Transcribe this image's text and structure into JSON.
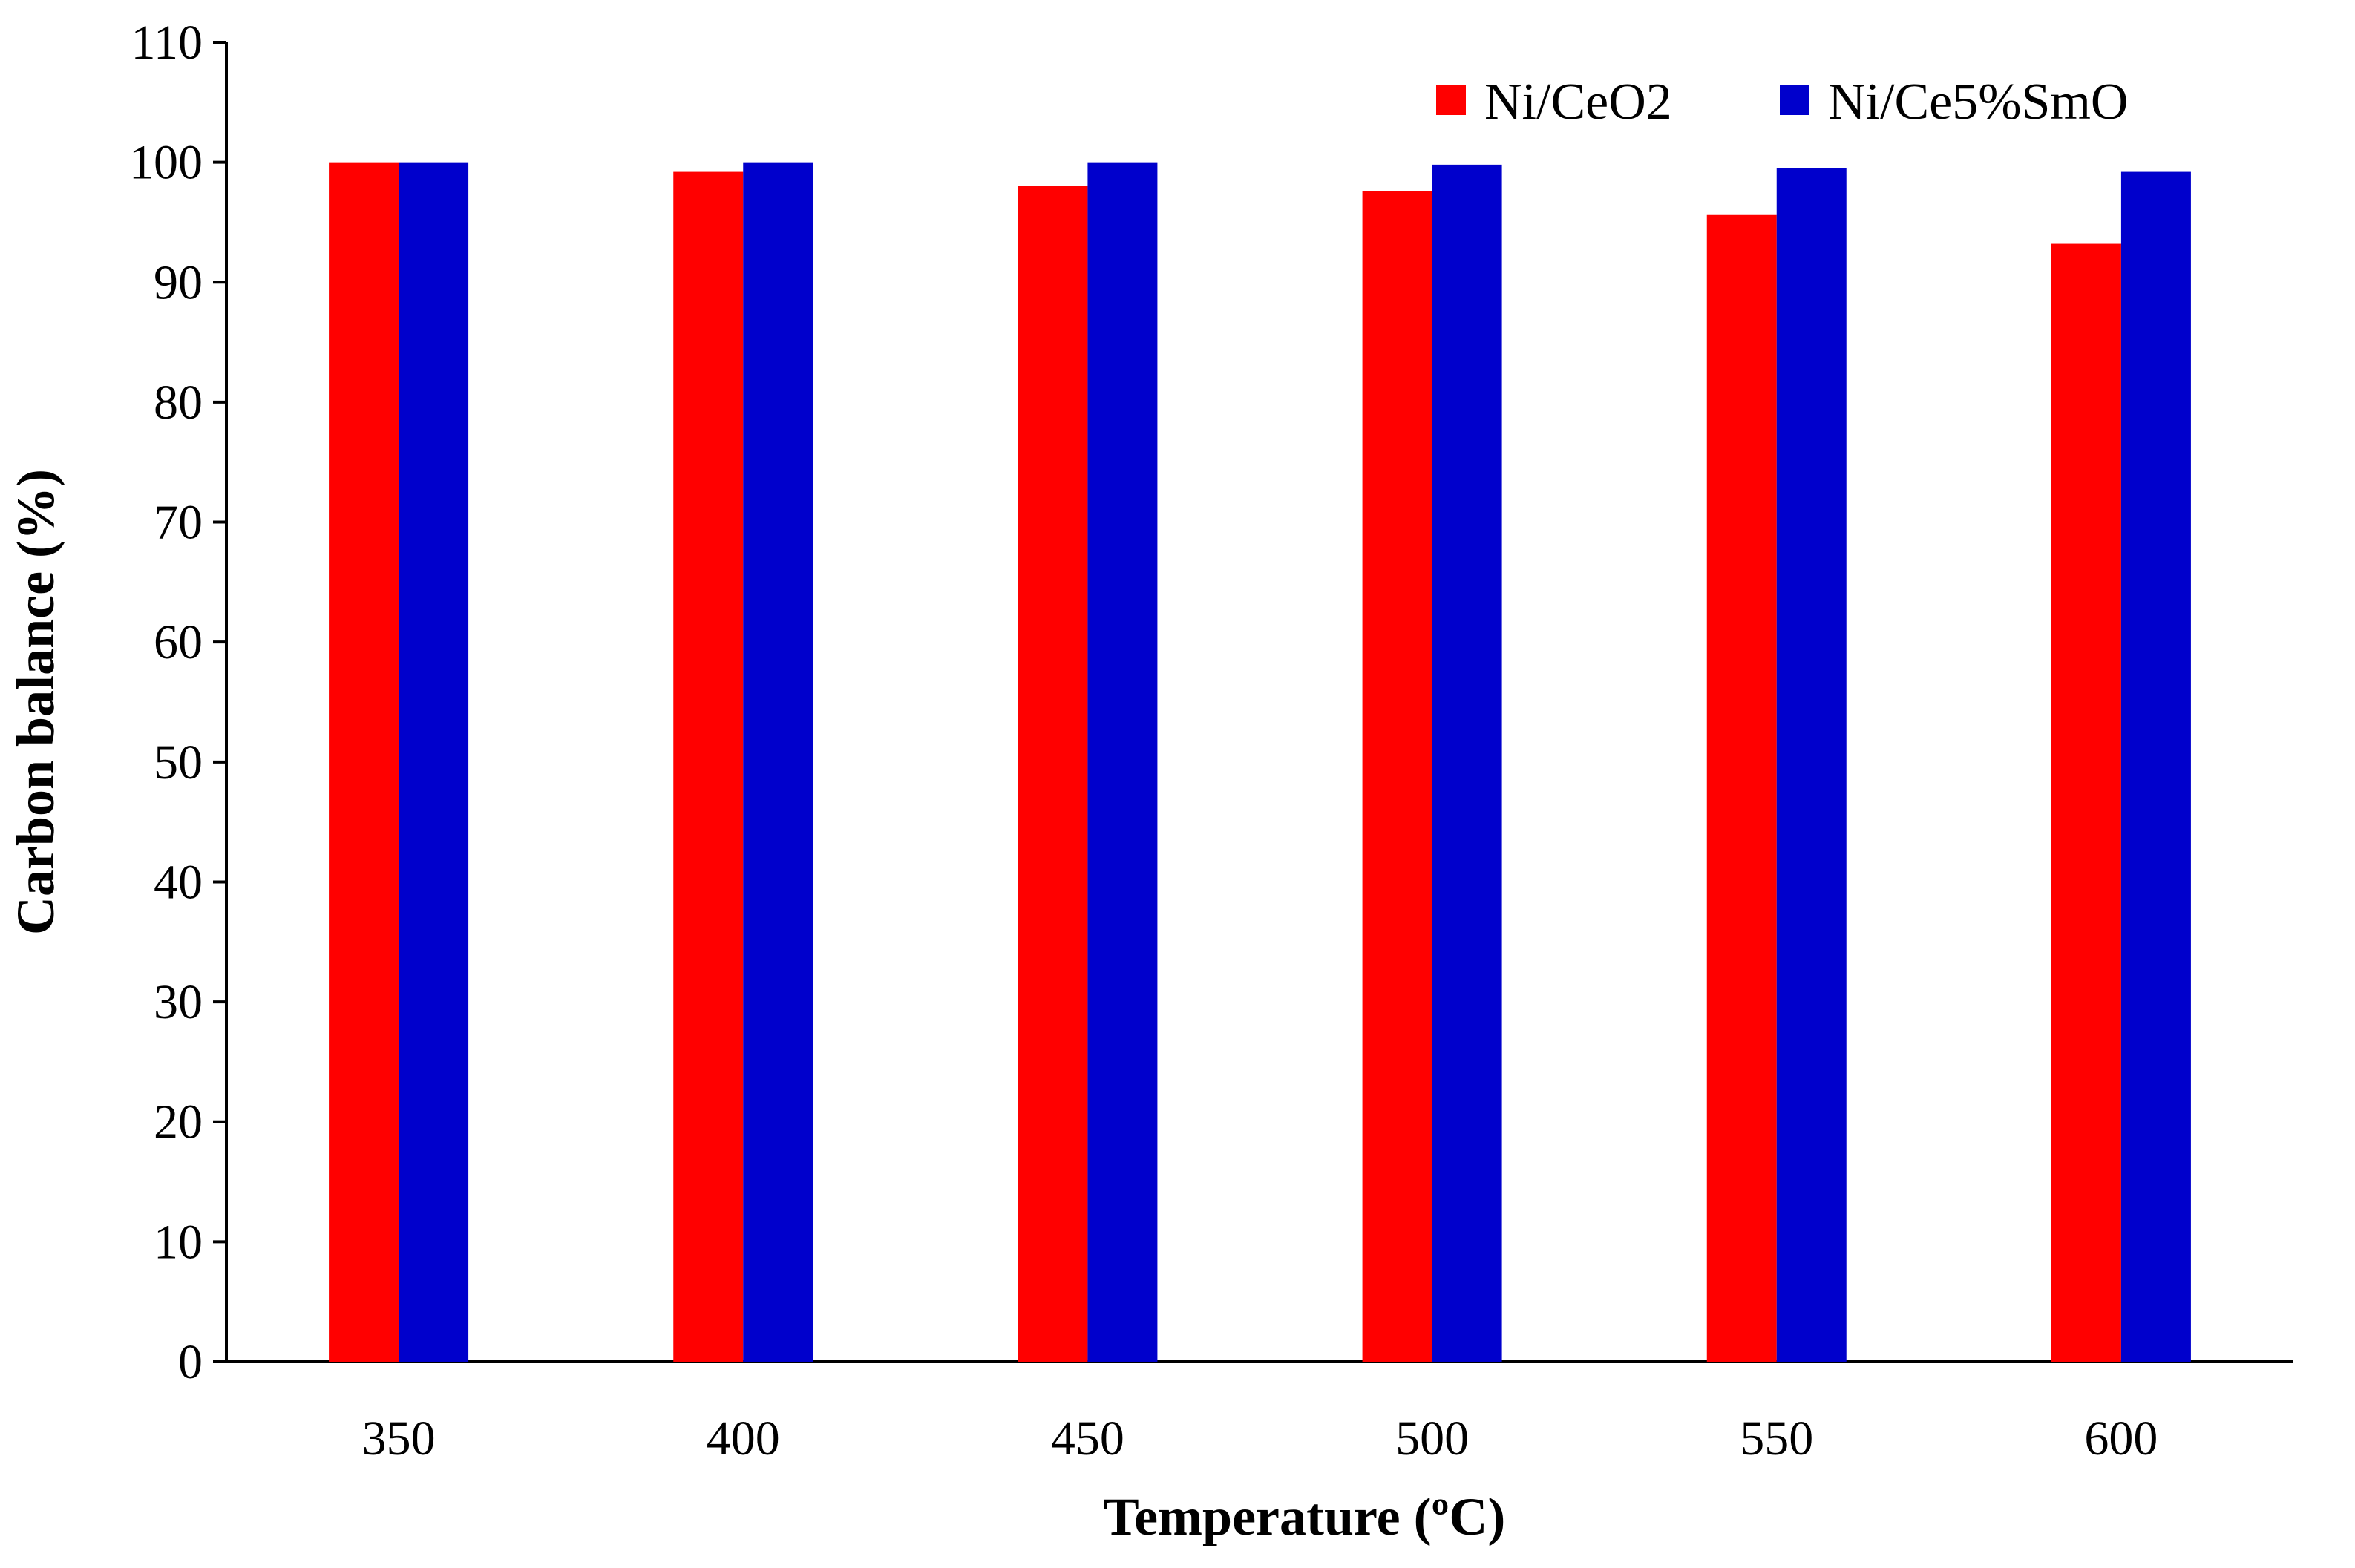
{
  "chart_data": {
    "type": "bar",
    "title": "",
    "xlabel": "Temperature (ºC)",
    "ylabel": "Carbon balance (%)",
    "categories": [
      "350",
      "400",
      "450",
      "500",
      "550",
      "600"
    ],
    "series": [
      {
        "name": "Ni/CeO2",
        "color": "#ff0000",
        "values": [
          100,
          99.2,
          98.0,
          97.6,
          95.6,
          93.2
        ]
      },
      {
        "name": "Ni/Ce5%SmO",
        "color": "#0000cc",
        "values": [
          100,
          100,
          100,
          99.8,
          99.5,
          99.2
        ]
      }
    ],
    "ylim": [
      0,
      110
    ],
    "yticks": [
      0,
      10,
      20,
      30,
      40,
      50,
      60,
      70,
      80,
      90,
      100,
      110
    ],
    "grid": false,
    "legend_position": "top-right"
  }
}
